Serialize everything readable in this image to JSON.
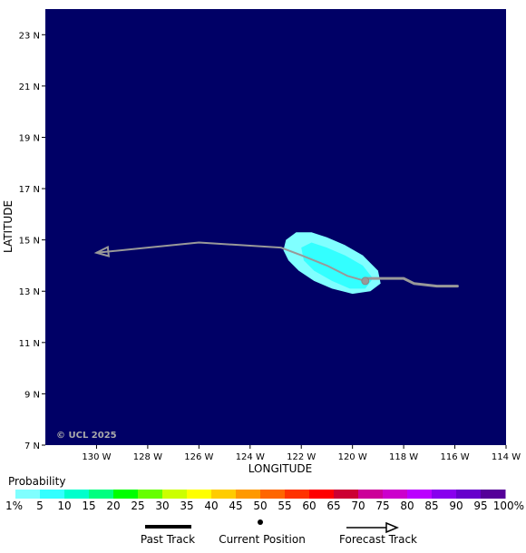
{
  "map": {
    "background_color": "#000066",
    "copyright": "© UCL 2025",
    "xlabel": "LONGITUDE",
    "ylabel": "LATITUDE",
    "x_ticks": [
      "130 W",
      "128 W",
      "126 W",
      "124 W",
      "122 W",
      "120 W",
      "118 W",
      "116 W",
      "114 W"
    ],
    "y_ticks": [
      "23 N",
      "21 N",
      "19 N",
      "17 N",
      "15 N",
      "13 N",
      "11 N",
      "9 N",
      "7 N"
    ]
  },
  "probability": {
    "title": "Probability",
    "labels": [
      "1%",
      "5",
      "10",
      "15",
      "20",
      "25",
      "30",
      "35",
      "40",
      "45",
      "50",
      "55",
      "60",
      "65",
      "70",
      "75",
      "80",
      "85",
      "90",
      "95",
      "100%"
    ],
    "colors": [
      "#80ffff",
      "#33ffff",
      "#00ffcc",
      "#00ff80",
      "#00ff00",
      "#66ff00",
      "#ccff00",
      "#ffff00",
      "#ffcc00",
      "#ff9900",
      "#ff6600",
      "#ff3300",
      "#ff0000",
      "#cc0033",
      "#cc0099",
      "#cc00cc",
      "#bb00ff",
      "#8800ee",
      "#6600cc",
      "#550099"
    ]
  },
  "legend": {
    "past_track": "Past Track",
    "current_position": "Current Position",
    "forecast_track": "Forecast Track"
  },
  "chart_data": {
    "type": "map",
    "xlim": [
      -132,
      -114
    ],
    "ylim": [
      7,
      24
    ],
    "past_track": [
      [
        -115.9,
        13.2
      ],
      [
        -116.7,
        13.2
      ],
      [
        -117.6,
        13.3
      ],
      [
        -118.0,
        13.5
      ],
      [
        -119.5,
        13.5
      ]
    ],
    "current_position": [
      -119.5,
      13.4
    ],
    "forecast_track": [
      [
        -119.5,
        13.4
      ],
      [
        -120.2,
        13.6
      ],
      [
        -121.0,
        14.0
      ],
      [
        -122.0,
        14.4
      ],
      [
        -122.8,
        14.7
      ],
      [
        -126.0,
        14.9
      ],
      [
        -128.0,
        14.7
      ],
      [
        -130.0,
        14.5
      ]
    ],
    "probability_region": [
      [
        -122.7,
        14.6
      ],
      [
        -122.6,
        15.0
      ],
      [
        -122.2,
        15.3
      ],
      [
        -121.6,
        15.3
      ],
      [
        -121.0,
        15.1
      ],
      [
        -120.3,
        14.8
      ],
      [
        -119.6,
        14.4
      ],
      [
        -119.0,
        13.8
      ],
      [
        -118.9,
        13.3
      ],
      [
        -119.3,
        13.0
      ],
      [
        -120.0,
        12.9
      ],
      [
        -120.8,
        13.1
      ],
      [
        -121.5,
        13.4
      ],
      [
        -122.1,
        13.8
      ],
      [
        -122.5,
        14.2
      ]
    ],
    "probability_core": [
      [
        -122.0,
        14.7
      ],
      [
        -121.6,
        14.9
      ],
      [
        -121.0,
        14.7
      ],
      [
        -120.3,
        14.4
      ],
      [
        -119.6,
        14.0
      ],
      [
        -119.2,
        13.5
      ],
      [
        -119.5,
        13.1
      ],
      [
        -120.1,
        13.1
      ],
      [
        -120.8,
        13.4
      ],
      [
        -121.5,
        13.8
      ],
      [
        -121.9,
        14.2
      ]
    ]
  }
}
